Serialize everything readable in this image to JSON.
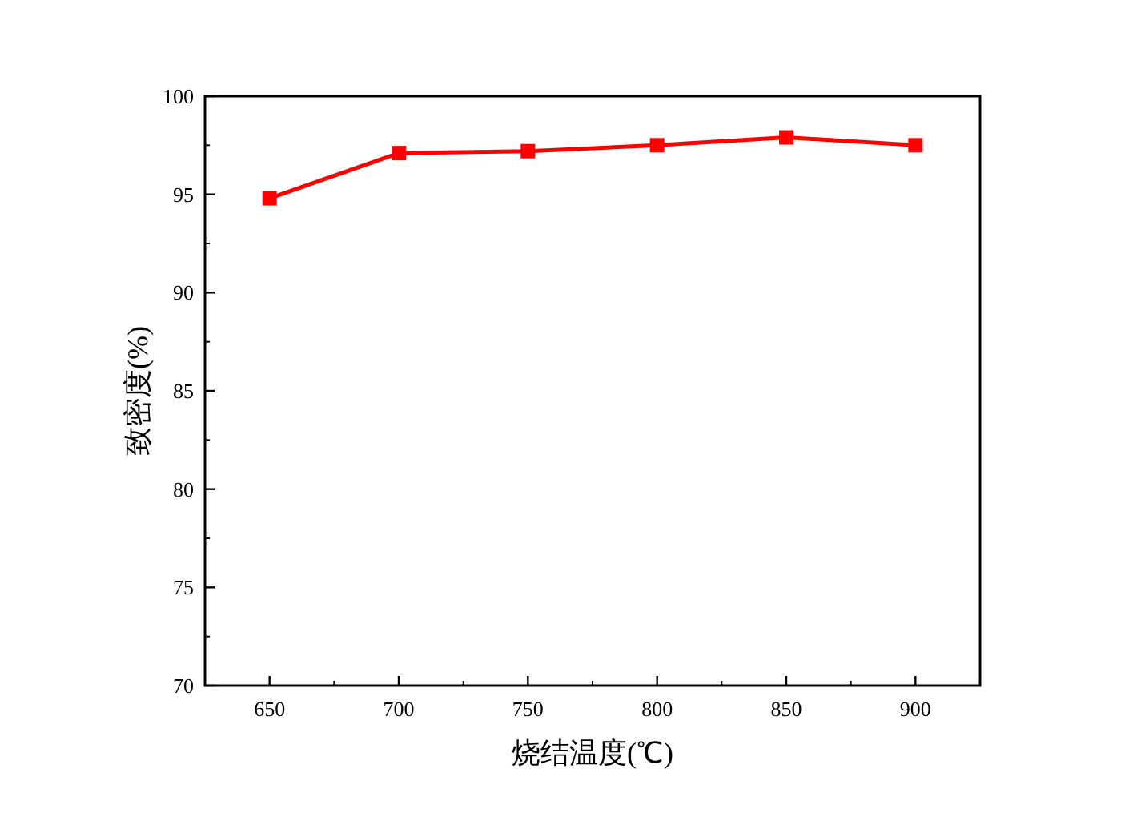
{
  "chart_data": {
    "type": "line",
    "xlabel": "烧结温度(℃)",
    "ylabel": "致密度(%)",
    "x": [
      650,
      700,
      750,
      800,
      850,
      900
    ],
    "series": [
      {
        "color": "#ff0000",
        "values": [
          94.8,
          97.1,
          97.2,
          97.5,
          97.9,
          97.5
        ]
      }
    ],
    "xlim": [
      625,
      925
    ],
    "xticks": [
      650,
      700,
      750,
      800,
      850,
      900
    ],
    "ylim": [
      70,
      100
    ],
    "yticks": [
      70,
      75,
      80,
      85,
      90,
      95,
      100
    ],
    "marker": "square",
    "line_style": "solid",
    "grid": false
  }
}
